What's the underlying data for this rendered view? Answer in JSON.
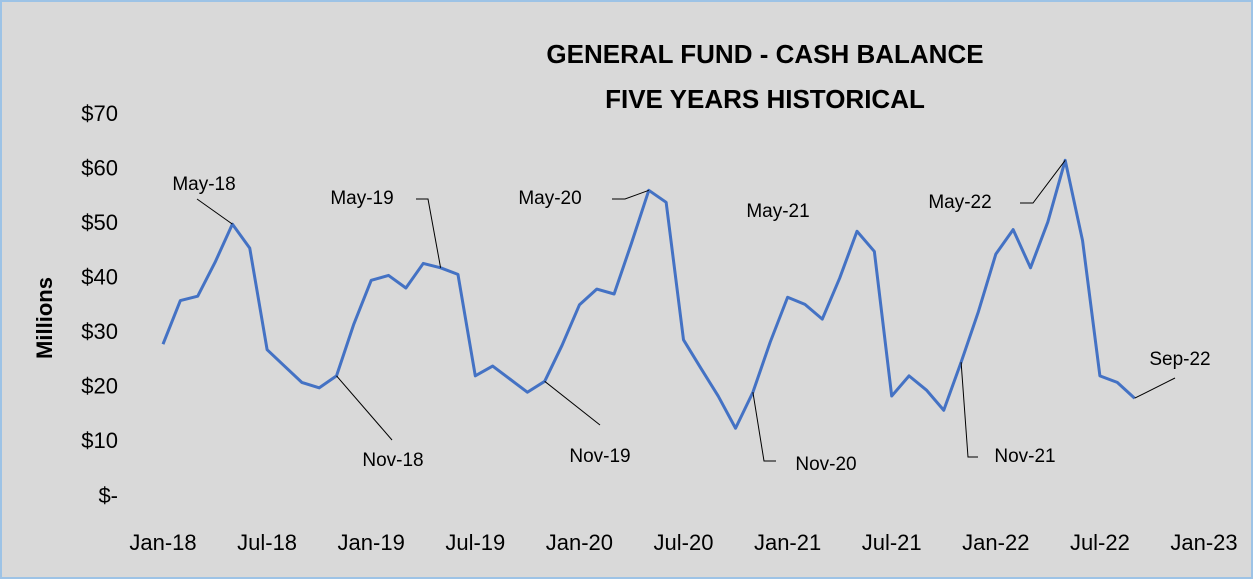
{
  "chart_data": {
    "type": "line",
    "title": [
      "GENERAL FUND - CASH BALANCE",
      "FIVE YEARS HISTORICAL"
    ],
    "y_label": "Millions",
    "x": [
      "2018-01",
      "2018-02",
      "2018-03",
      "2018-04",
      "2018-05",
      "2018-06",
      "2018-07",
      "2018-08",
      "2018-09",
      "2018-10",
      "2018-11",
      "2018-12",
      "2019-01",
      "2019-02",
      "2019-03",
      "2019-04",
      "2019-05",
      "2019-06",
      "2019-07",
      "2019-08",
      "2019-09",
      "2019-10",
      "2019-11",
      "2019-12",
      "2020-01",
      "2020-02",
      "2020-03",
      "2020-04",
      "2020-05",
      "2020-06",
      "2020-07",
      "2020-08",
      "2020-09",
      "2020-10",
      "2020-11",
      "2020-12",
      "2021-01",
      "2021-02",
      "2021-03",
      "2021-04",
      "2021-05",
      "2021-06",
      "2021-07",
      "2021-08",
      "2021-09",
      "2021-10",
      "2021-11",
      "2021-12",
      "2022-01",
      "2022-02",
      "2022-03",
      "2022-04",
      "2022-05",
      "2022-06",
      "2022-07",
      "2022-08",
      "2022-09"
    ],
    "series": [
      {
        "name": "Cash Balance",
        "color": "#4472c4",
        "values": [
          28,
          36,
          36.8,
          43,
          50,
          45.6,
          27,
          24,
          21,
          20,
          22.2,
          31.7,
          39.7,
          40.6,
          38.3,
          42.8,
          42,
          40.8,
          22.2,
          24,
          21.6,
          19.2,
          21.2,
          27.8,
          35.2,
          38.1,
          37.2,
          46.5,
          56.2,
          54,
          28.8,
          23.6,
          18.5,
          12.6,
          19.2,
          28.4,
          36.6,
          35.3,
          32.6,
          40.1,
          48.7,
          45,
          18.5,
          22.2,
          19.6,
          15.9,
          24.7,
          34,
          44.5,
          49,
          42,
          50.4,
          61.7,
          47,
          22.2,
          21,
          18.1
        ]
      }
    ],
    "xlim": [
      "2018-01",
      "2023-01"
    ],
    "xticks": [
      {
        "value": "2018-01",
        "label": "Jan-18"
      },
      {
        "value": "2018-07",
        "label": "Jul-18"
      },
      {
        "value": "2019-01",
        "label": "Jan-19"
      },
      {
        "value": "2019-07",
        "label": "Jul-19"
      },
      {
        "value": "2020-01",
        "label": "Jan-20"
      },
      {
        "value": "2020-07",
        "label": "Jul-20"
      },
      {
        "value": "2021-01",
        "label": "Jan-21"
      },
      {
        "value": "2021-07",
        "label": "Jul-21"
      },
      {
        "value": "2022-01",
        "label": "Jan-22"
      },
      {
        "value": "2022-07",
        "label": "Jul-22"
      },
      {
        "value": "2023-01",
        "label": "Jan-23"
      }
    ],
    "ylim": [
      0,
      70
    ],
    "yticks": [
      {
        "value": 0,
        "label": "$-"
      },
      {
        "value": 10,
        "label": "$10"
      },
      {
        "value": 20,
        "label": "$20"
      },
      {
        "value": 30,
        "label": "$30"
      },
      {
        "value": 40,
        "label": "$40"
      },
      {
        "value": 50,
        "label": "$50"
      },
      {
        "value": 60,
        "label": "$60"
      },
      {
        "value": 70,
        "label": "$70"
      }
    ],
    "grid": false,
    "annotations": [
      {
        "text": "May-18",
        "x": "2018-05"
      },
      {
        "text": "May-19",
        "x": "2019-05"
      },
      {
        "text": "May-20",
        "x": "2020-05"
      },
      {
        "text": "May-21",
        "x": "2021-05"
      },
      {
        "text": "May-22",
        "x": "2022-05"
      },
      {
        "text": "Nov-18",
        "x": "2018-11"
      },
      {
        "text": "Nov-19",
        "x": "2019-11"
      },
      {
        "text": "Nov-20",
        "x": "2020-11"
      },
      {
        "text": "Nov-21",
        "x": "2021-11"
      },
      {
        "text": "Sep-22",
        "x": "2022-09"
      }
    ]
  }
}
